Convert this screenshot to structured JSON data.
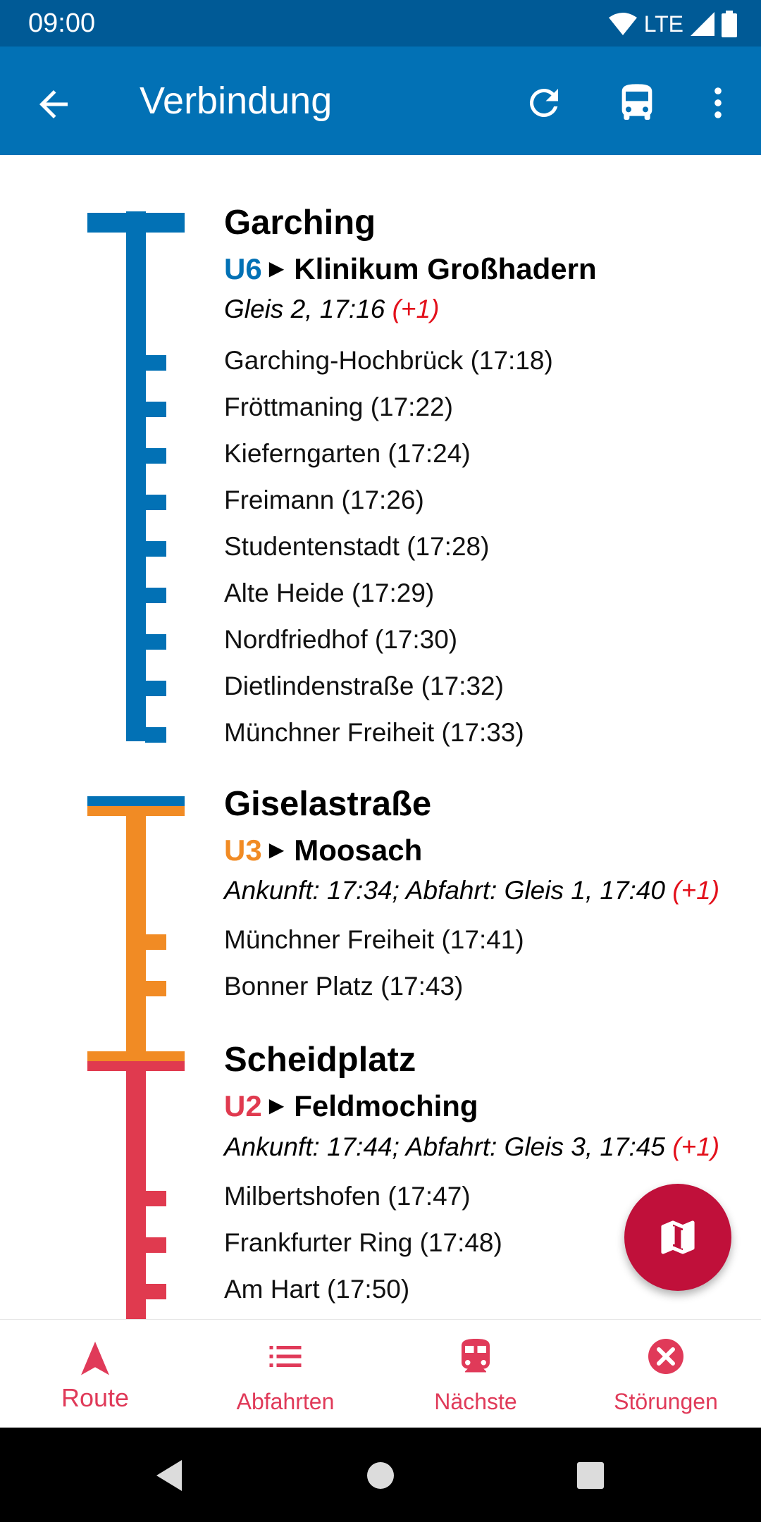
{
  "status_bar": {
    "time": "09:00",
    "network": "LTE"
  },
  "app_bar": {
    "title": "Verbindung"
  },
  "colors": {
    "u6": "#0271b5",
    "u3": "#f18b24",
    "u2": "#e03a4f",
    "delay": "#e3101b",
    "nav": "#e03a59",
    "fab": "#c0103a"
  },
  "segments": [
    {
      "station": "Garching",
      "line": "U6",
      "destination": "Klinikum Großhadern",
      "info": "Gleis 2, 17:16",
      "delay": "(+1)",
      "stops": [
        "Garching-Hochbrück (17:18)",
        "Fröttmaning (17:22)",
        "Kieferngarten (17:24)",
        "Freimann (17:26)",
        "Studentenstadt (17:28)",
        "Alte Heide (17:29)",
        "Nordfriedhof (17:30)",
        "Dietlindenstraße (17:32)",
        "Münchner Freiheit (17:33)"
      ]
    },
    {
      "station": "Giselastraße",
      "line": "U3",
      "destination": "Moosach",
      "info": "Ankunft: 17:34; Abfahrt: Gleis 1, 17:40",
      "delay": "(+1)",
      "stops": [
        "Münchner Freiheit (17:41)",
        "Bonner Platz (17:43)"
      ]
    },
    {
      "station": "Scheidplatz",
      "line": "U2",
      "destination": "Feldmoching",
      "info": "Ankunft: 17:44; Abfahrt: Gleis 3, 17:45",
      "delay": "(+1)",
      "stops": [
        "Milbertshofen (17:47)",
        "Frankfurter Ring (17:48)",
        "Am Hart (17:50)"
      ]
    }
  ],
  "bottom_nav": {
    "items": [
      {
        "label": "Route",
        "icon": "navigation-arrow-icon"
      },
      {
        "label": "Abfahrten",
        "icon": "list-icon"
      },
      {
        "label": "Nächste",
        "icon": "train-icon"
      },
      {
        "label": "Störungen",
        "icon": "error-circle-icon"
      }
    ]
  }
}
